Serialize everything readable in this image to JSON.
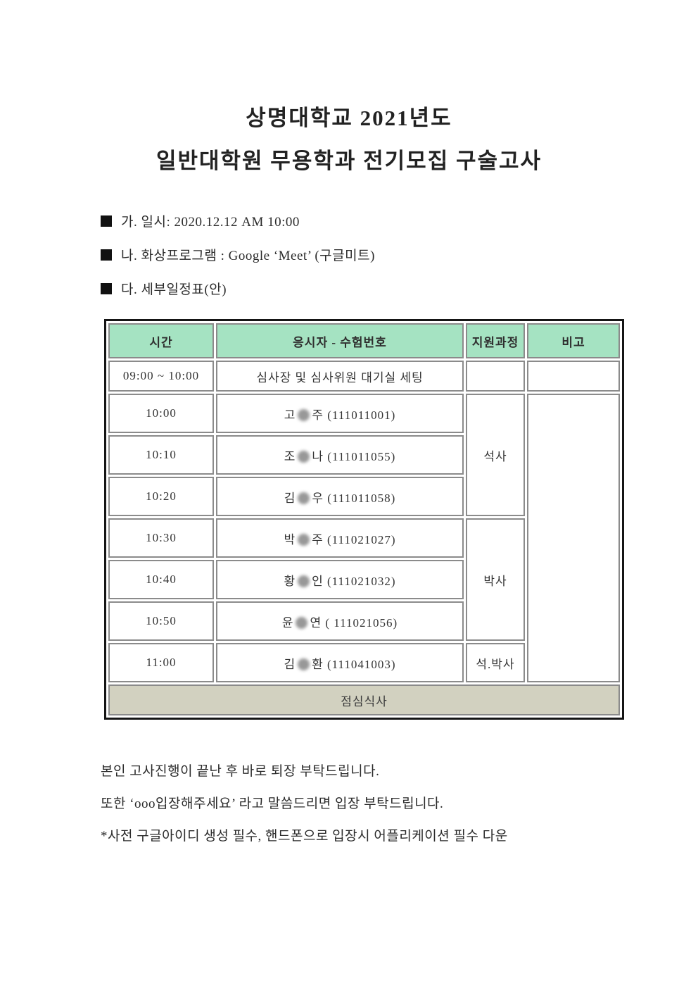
{
  "document": {
    "title_line1": "상명대학교 2021년도",
    "title_line2": "일반대학원 무용학과 전기모집 구술고사",
    "bullets": [
      {
        "marker": "■",
        "text": "가. 일시: 2020.12.12 AM 10:00"
      },
      {
        "marker": "■",
        "text": "나. 화상프로그램 : Google ‘Meet’ (구글미트)"
      },
      {
        "marker": "■",
        "text": "다. 세부일정표(안)"
      }
    ],
    "table": {
      "headers": {
        "time": "시간",
        "candidate": "응시자 - 수험번호",
        "program": "지원과정",
        "remark": "비고"
      },
      "setup_row": {
        "time": "09:00 ~ 10:00",
        "description": "심사장 및 심사위원 대기실 세팅"
      },
      "rows": [
        {
          "time": "10:00",
          "name_pre": "고",
          "name_post": "주 (111011001)",
          "redacted": true
        },
        {
          "time": "10:10",
          "name_pre": "조",
          "name_post": "나 (111011055)",
          "redacted": true
        },
        {
          "time": "10:20",
          "name_pre": "김",
          "name_post": "우 (111011058)",
          "redacted": true
        },
        {
          "time": "10:30",
          "name_pre": "박",
          "name_post": "주 (111021027)",
          "redacted": true
        },
        {
          "time": "10:40",
          "name_pre": "황",
          "name_post": "인 (111021032)",
          "redacted": true
        },
        {
          "time": "10:50",
          "name_pre": "윤",
          "name_post": "연 ( 111021056)",
          "redacted": true
        },
        {
          "time": "11:00",
          "name_pre": "김",
          "name_post": "환 (111041003)",
          "redacted": true
        }
      ],
      "programs": [
        {
          "label": "석사",
          "rowspan": 3
        },
        {
          "label": "박사",
          "rowspan": 3
        },
        {
          "label": "석.박사",
          "rowspan": 1
        }
      ],
      "lunch_label": "점심식사"
    },
    "notes": [
      "본인 고사진행이 끝난 후 바로 퇴장 부탁드립니다.",
      "또한 ‘ooo입장해주세요’ 라고 말씀드리면 입장 부탁드립니다.",
      "*사전 구글아이디 생성 필수, 핸드폰으로 입장시 어플리케이션 필수 다운"
    ],
    "colors": {
      "header_bg": "#a5e3c2",
      "lunch_bg": "#d2d1c0",
      "cell_border": "#8b8b8b",
      "outer_border": "#151515"
    }
  }
}
